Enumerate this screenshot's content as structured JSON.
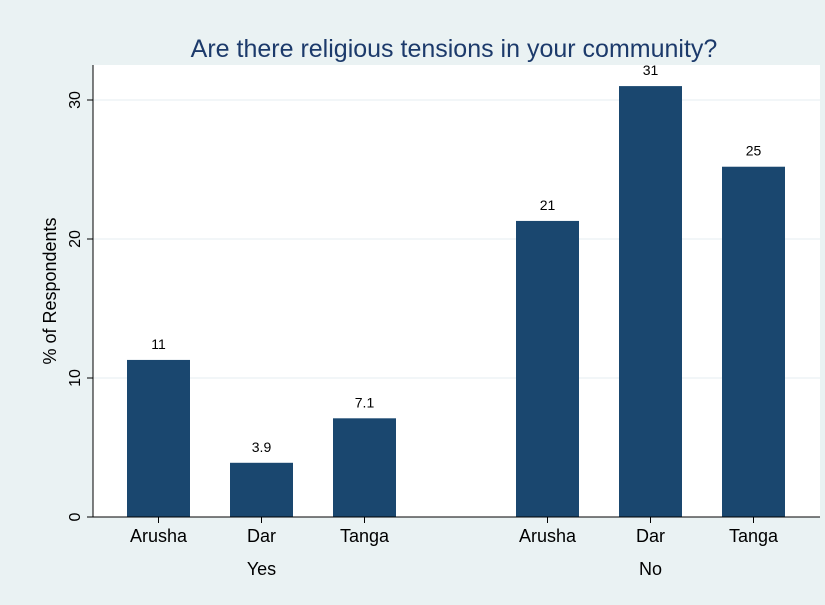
{
  "chart_data": {
    "type": "bar",
    "title": "Are there religious tensions in your community?",
    "xlabel": "",
    "ylabel": "% of Respondents",
    "ylim": [
      0,
      32.5
    ],
    "yticks": [
      0,
      10,
      20,
      30
    ],
    "grid": true,
    "groups": [
      {
        "name": "Yes",
        "categories": [
          "Arusha",
          "Dar",
          "Tanga"
        ],
        "values": [
          11.3,
          3.9,
          7.1
        ],
        "labels": [
          "11",
          "3.9",
          "7.1"
        ]
      },
      {
        "name": "No",
        "categories": [
          "Arusha",
          "Dar",
          "Tanga"
        ],
        "values": [
          21.3,
          31.0,
          25.2
        ],
        "labels": [
          "21",
          "31",
          "25"
        ]
      }
    ],
    "bar_color": "#1a476f"
  }
}
